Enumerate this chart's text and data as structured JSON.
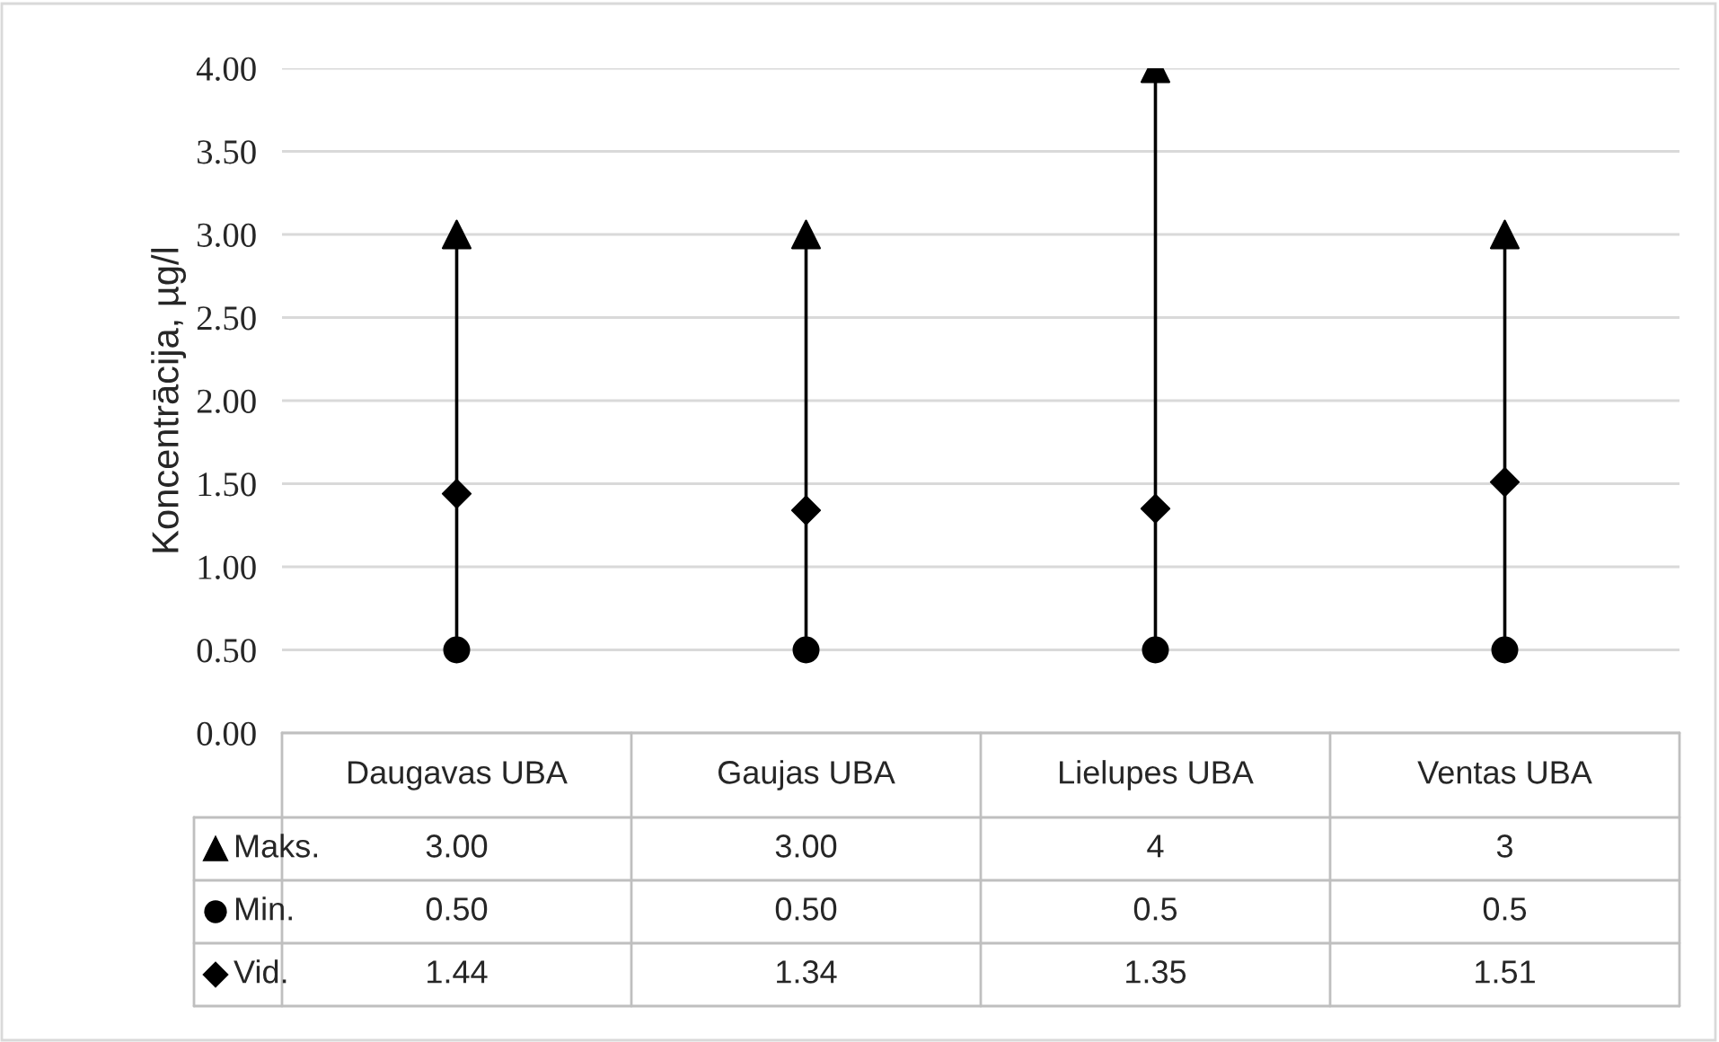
{
  "chart_data": {
    "type": "scatter",
    "ylabel": "Koncentrācija, µg/l",
    "categories": [
      "Daugavas UBA",
      "Gaujas UBA",
      "Lielupes UBA",
      "Ventas UBA"
    ],
    "series": [
      {
        "name": "Maks.",
        "color": "#000000",
        "marker": "triangle",
        "values": [
          3.0,
          3.0,
          4,
          3
        ],
        "value_labels": [
          "3.00",
          "3.00",
          "4",
          "3"
        ]
      },
      {
        "name": "Min.",
        "color": "#000000",
        "marker": "circle",
        "values": [
          0.5,
          0.5,
          0.5,
          0.5
        ],
        "value_labels": [
          "0.50",
          "0.50",
          "0.5",
          "0.5"
        ]
      },
      {
        "name": "Vid.",
        "color": "#000000",
        "marker": "diamond",
        "values": [
          1.44,
          1.34,
          1.35,
          1.51
        ],
        "value_labels": [
          "1.44",
          "1.34",
          "1.35",
          "1.51"
        ]
      }
    ],
    "ylim": [
      0,
      4
    ],
    "yticks": [
      {
        "value": 0,
        "label": "0.00"
      },
      {
        "value": 0.5,
        "label": "0.50"
      },
      {
        "value": 1,
        "label": "1.00"
      },
      {
        "value": 1.5,
        "label": "1.50"
      },
      {
        "value": 2,
        "label": "2.00"
      },
      {
        "value": 2.5,
        "label": "2.50"
      },
      {
        "value": 3,
        "label": "3.00"
      },
      {
        "value": 3.5,
        "label": "3.50"
      },
      {
        "value": 4,
        "label": "4.00"
      }
    ],
    "grid": "y",
    "legend": "bottom"
  }
}
